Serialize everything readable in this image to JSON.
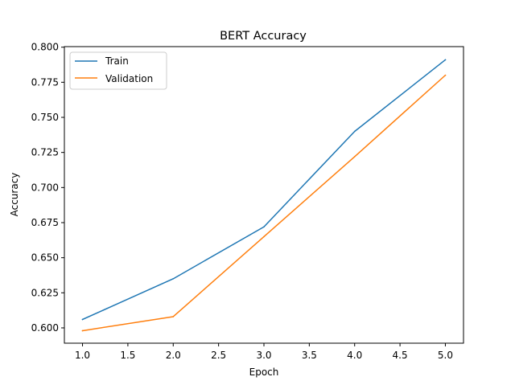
{
  "chart_data": {
    "type": "line",
    "title": "BERT Accuracy",
    "xlabel": "Epoch",
    "ylabel": "Accuracy",
    "x": [
      1,
      2,
      3,
      4,
      5
    ],
    "series": [
      {
        "name": "Train",
        "values": [
          0.606,
          0.635,
          0.672,
          0.74,
          0.791
        ],
        "color": "#1f77b4"
      },
      {
        "name": "Validation",
        "values": [
          0.598,
          0.608,
          0.665,
          0.722,
          0.78
        ],
        "color": "#ff7f0e"
      }
    ],
    "xlim": [
      0.8,
      5.2
    ],
    "ylim": [
      0.5891,
      0.8004
    ],
    "x_ticks": [
      1.0,
      1.5,
      2.0,
      2.5,
      3.0,
      3.5,
      4.0,
      4.5,
      5.0
    ],
    "x_tick_labels": [
      "1.0",
      "1.5",
      "2.0",
      "2.5",
      "3.0",
      "3.5",
      "4.0",
      "4.5",
      "5.0"
    ],
    "y_ticks": [
      0.6,
      0.625,
      0.65,
      0.675,
      0.7,
      0.725,
      0.75,
      0.775,
      0.8
    ],
    "y_tick_labels": [
      "0.600",
      "0.625",
      "0.650",
      "0.675",
      "0.700",
      "0.725",
      "0.750",
      "0.775",
      "0.800"
    ],
    "grid": false,
    "legend_position": "top-left"
  }
}
